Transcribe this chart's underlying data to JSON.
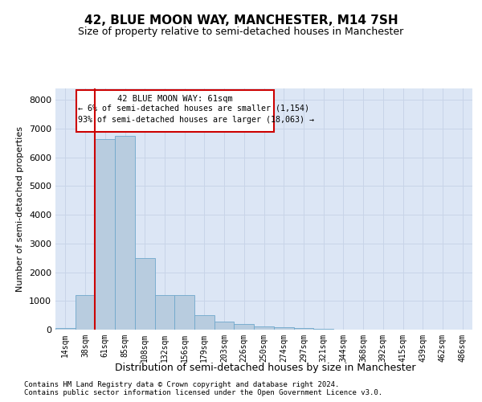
{
  "title": "42, BLUE MOON WAY, MANCHESTER, M14 7SH",
  "subtitle": "Size of property relative to semi-detached houses in Manchester",
  "xlabel": "Distribution of semi-detached houses by size in Manchester",
  "ylabel": "Number of semi-detached properties",
  "categories": [
    "14sqm",
    "38sqm",
    "61sqm",
    "85sqm",
    "108sqm",
    "132sqm",
    "156sqm",
    "179sqm",
    "203sqm",
    "226sqm",
    "250sqm",
    "274sqm",
    "297sqm",
    "321sqm",
    "344sqm",
    "368sqm",
    "392sqm",
    "415sqm",
    "439sqm",
    "462sqm",
    "486sqm"
  ],
  "values": [
    50,
    1200,
    6650,
    6750,
    2500,
    1200,
    1200,
    500,
    280,
    200,
    120,
    80,
    60,
    20,
    10,
    5,
    3,
    2,
    1,
    1,
    0
  ],
  "bar_color": "#b8ccdf",
  "bar_edge_color": "#6fa8cc",
  "property_label": "42 BLUE MOON WAY: 61sqm",
  "pct_smaller": "6%",
  "n_smaller": "1,154",
  "pct_larger": "93%",
  "n_larger": "18,063",
  "vline_index": 2,
  "vline_color": "#cc0000",
  "annotation_box_color": "#cc0000",
  "ylim": [
    0,
    8400
  ],
  "yticks": [
    0,
    1000,
    2000,
    3000,
    4000,
    5000,
    6000,
    7000,
    8000
  ],
  "grid_color": "#c8d4e8",
  "bg_color": "#dce6f5",
  "footer1": "Contains HM Land Registry data © Crown copyright and database right 2024.",
  "footer2": "Contains public sector information licensed under the Open Government Licence v3.0."
}
